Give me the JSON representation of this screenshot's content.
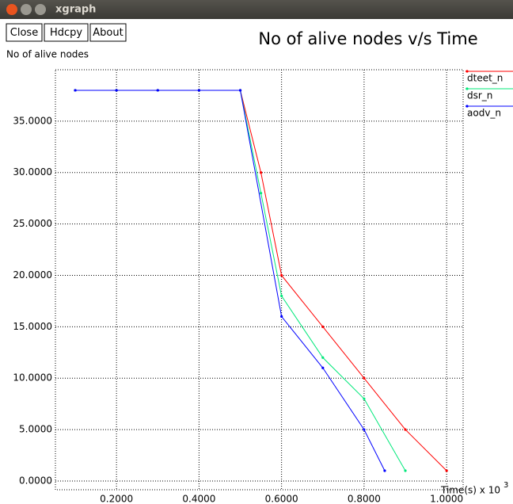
{
  "window_title": "xgraph",
  "buttons": [
    "Close",
    "Hdcpy",
    "About"
  ],
  "chart_data": {
    "type": "line",
    "title": "No of alive nodes v/s Time",
    "y_label": "No of alive nodes",
    "x_label": "Time(s) x 10",
    "x_label_exponent": "3",
    "xlim": [
      0.052,
      1.04
    ],
    "ylim": [
      -0.85,
      40
    ],
    "xticks": [
      {
        "value": 0.2,
        "label": "0.2000"
      },
      {
        "value": 0.4,
        "label": "0.4000"
      },
      {
        "value": 0.6,
        "label": "0.6000"
      },
      {
        "value": 0.8,
        "label": "0.8000"
      },
      {
        "value": 1.0,
        "label": "1.0000"
      }
    ],
    "yticks": [
      {
        "value": 0,
        "label": "0.0000"
      },
      {
        "value": 5,
        "label": "5.0000"
      },
      {
        "value": 10,
        "label": "10.0000"
      },
      {
        "value": 15,
        "label": "15.0000"
      },
      {
        "value": 20,
        "label": "20.0000"
      },
      {
        "value": 25,
        "label": "25.0000"
      },
      {
        "value": 30,
        "label": "30.0000"
      },
      {
        "value": 35,
        "label": "35.0000"
      }
    ],
    "grid": true,
    "legend": "right",
    "series": [
      {
        "name": "dteet_n",
        "color": "#ff0000",
        "x": [
          0.1,
          0.2,
          0.3,
          0.4,
          0.5,
          0.55,
          0.6,
          0.7,
          0.8,
          0.9,
          1.0
        ],
        "values": [
          38,
          38,
          38,
          38,
          38,
          30,
          20,
          15,
          10,
          5,
          1
        ]
      },
      {
        "name": "dsr_n",
        "color": "#00e87a",
        "x": [
          0.1,
          0.2,
          0.3,
          0.4,
          0.5,
          0.55,
          0.6,
          0.7,
          0.8,
          0.9
        ],
        "values": [
          38,
          38,
          38,
          38,
          38,
          28,
          18,
          12,
          8,
          1
        ]
      },
      {
        "name": "aodv_n",
        "color": "#0000ff",
        "x": [
          0.1,
          0.2,
          0.3,
          0.4,
          0.5,
          0.6,
          0.7,
          0.8,
          0.85
        ],
        "values": [
          38,
          38,
          38,
          38,
          38,
          16,
          11,
          5,
          1
        ]
      }
    ]
  }
}
